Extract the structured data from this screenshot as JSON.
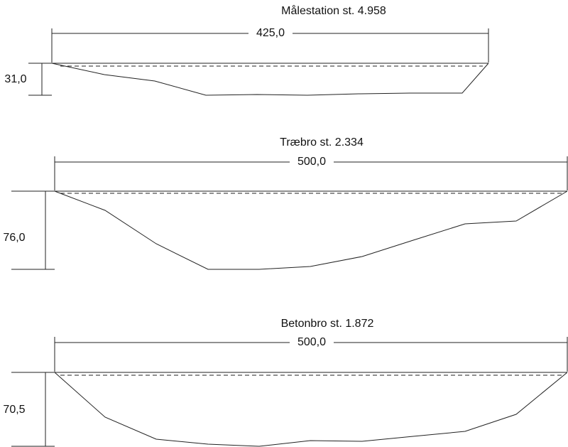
{
  "sections": [
    {
      "title": "Målestation st. 4.958",
      "width": "425,0",
      "depth": "31,0"
    },
    {
      "title": "Træbro st. 2.334",
      "width": "500,0",
      "depth": "76,0"
    },
    {
      "title": "Betonbro st. 1.872",
      "width": "500,0",
      "depth": "70,5"
    }
  ]
}
